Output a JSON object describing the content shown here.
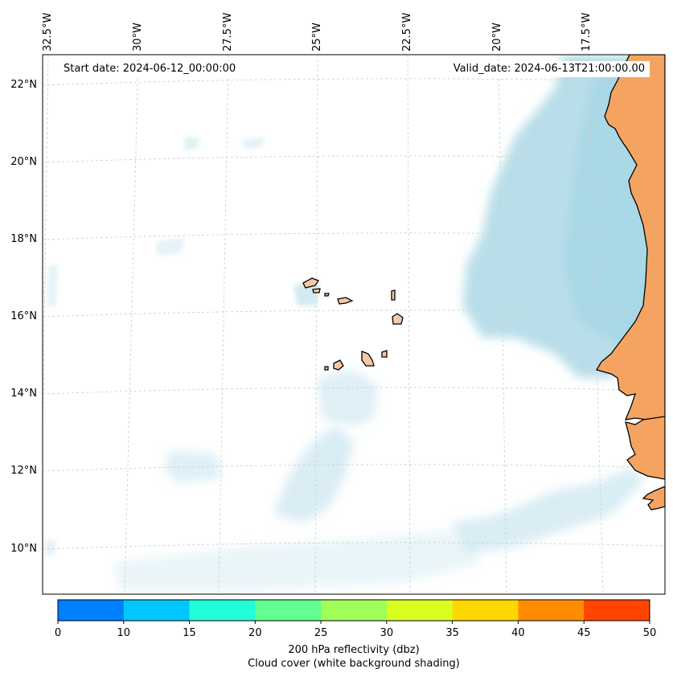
{
  "map": {
    "start_date": "Start date: 2024-06-12_00:00:00",
    "valid_date": "Valid_date: 2024-06-13T21:00:00.00",
    "lon_labels": [
      "32.5°W",
      "30°W",
      "27.5°W",
      "25°W",
      "22.5°W",
      "20°W",
      "17.5°W"
    ],
    "lat_labels": [
      "22°N",
      "20°N",
      "18°N",
      "16°N",
      "14°N",
      "12°N",
      "10°N"
    ],
    "colors": {
      "land": "#f4a460",
      "coast": "#000000",
      "cloud": "#add8e6",
      "grid": "#cccccc"
    }
  },
  "colorbar": {
    "ticks": [
      "0",
      "10",
      "15",
      "20",
      "25",
      "30",
      "35",
      "40",
      "45",
      "50"
    ],
    "colors": [
      "#0080ff",
      "#00c8ff",
      "#20ffd8",
      "#60ff90",
      "#a0ff58",
      "#d8ff20",
      "#ffd700",
      "#ff8c00",
      "#ff4500"
    ],
    "label_line1": "200 hPa reflectivity (dbz)",
    "label_line2": "Cloud cover (white background shading)"
  }
}
